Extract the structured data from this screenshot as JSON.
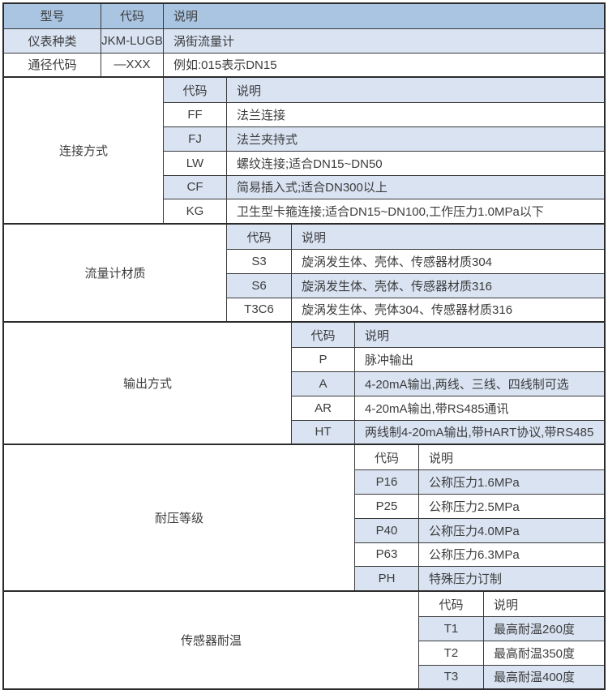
{
  "colors": {
    "header_bg": "#aac5e2",
    "stripe_bg": "#d9e3f2",
    "row_bg": "#ffffff",
    "border": "#3a3a3a",
    "outer_border": "#2b2b2b",
    "text": "#3c3c3c"
  },
  "header": {
    "model": "型号",
    "code": "代码",
    "desc": "说明"
  },
  "top_rows": [
    {
      "label": "仪表种类",
      "code": "JKM-LUGB",
      "desc": "涡街流量计"
    },
    {
      "label": "通径代码",
      "code": "—XXX",
      "desc": "例如:015表示DN15"
    }
  ],
  "sections": [
    {
      "label": "连接方式",
      "header_code": "代码",
      "header_desc": "说明",
      "rows": [
        {
          "code": "FF",
          "desc": "法兰连接"
        },
        {
          "code": "FJ",
          "desc": "法兰夹持式"
        },
        {
          "code": "LW",
          "desc": "螺纹连接;适合DN15~DN50"
        },
        {
          "code": "CF",
          "desc": "简易插入式;适合DN300以上"
        },
        {
          "code": "KG",
          "desc": "卫生型卡箍连接;适合DN15~DN100,工作压力1.0MPa以下"
        }
      ]
    },
    {
      "label": "流量计材质",
      "header_code": "代码",
      "header_desc": "说明",
      "rows": [
        {
          "code": "S3",
          "desc": "旋涡发生体、壳体、传感器材质304"
        },
        {
          "code": "S6",
          "desc": "旋涡发生体、壳体、传感器材质316"
        },
        {
          "code": "T3C6",
          "desc": "旋涡发生体、壳体304、传感器材质316"
        }
      ]
    },
    {
      "label": "输出方式",
      "header_code": "代码",
      "header_desc": "说明",
      "rows": [
        {
          "code": "P",
          "desc": "脉冲输出"
        },
        {
          "code": "A",
          "desc": "4-20mA输出,两线、三线、四线制可选"
        },
        {
          "code": "AR",
          "desc": "4-20mA输出,带RS485通讯"
        },
        {
          "code": "HT",
          "desc": "两线制4-20mA输出,带HART协议,带RS485"
        }
      ]
    },
    {
      "label": "耐压等级",
      "header_code": "代码",
      "header_desc": "说明",
      "rows": [
        {
          "code": "P16",
          "desc": "公称压力1.6MPa"
        },
        {
          "code": "P25",
          "desc": "公称压力2.5MPa"
        },
        {
          "code": "P40",
          "desc": "公称压力4.0MPa"
        },
        {
          "code": "P63",
          "desc": "公称压力6.3MPa"
        },
        {
          "code": "PH",
          "desc": "特殊压力订制"
        }
      ]
    },
    {
      "label": "传感器耐温",
      "header_code": "代码",
      "header_desc": "说明",
      "rows": [
        {
          "code": "T1",
          "desc": "最高耐温260度"
        },
        {
          "code": "T2",
          "desc": "最高耐温350度"
        },
        {
          "code": "T3",
          "desc": "最高耐温400度"
        }
      ]
    }
  ]
}
